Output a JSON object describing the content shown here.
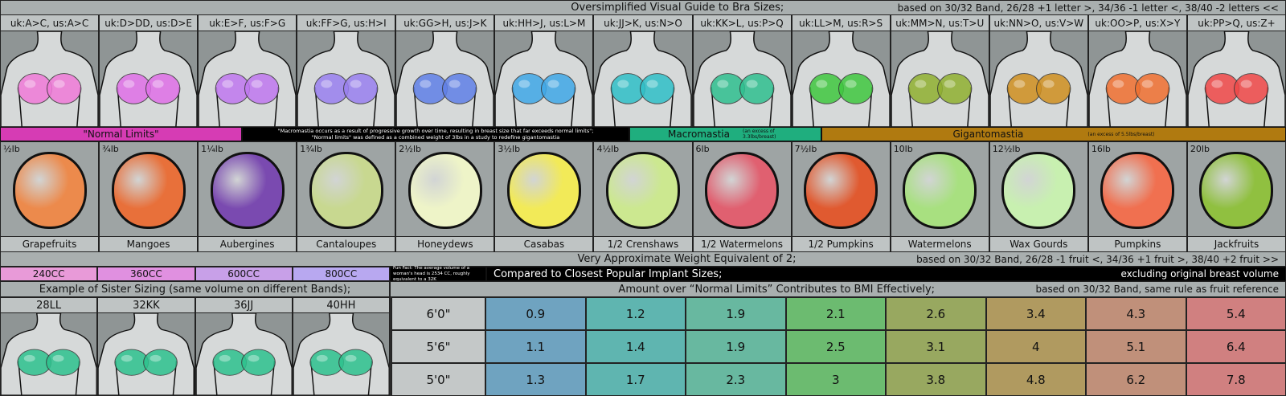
{
  "title": "Oversimplified Visual Guide to Bra Sizes;",
  "title_note": "based on 30/32 Band, 26/28 +1 letter >, 34/36 -1 letter <, 38/40 -2 letters <<",
  "sizes": [
    {
      "label": "uk:A>C, us:A>C",
      "color": "#f07ad8"
    },
    {
      "label": "uk:D>DD, us:D>E",
      "color": "#e070e8"
    },
    {
      "label": "uk:E>F, us:F>G",
      "color": "#c078f0"
    },
    {
      "label": "uk:FF>G, us:H>I",
      "color": "#9a80f0"
    },
    {
      "label": "uk:GG>H, us:J>K",
      "color": "#6080e8"
    },
    {
      "label": "uk:HH>J, us:L>M",
      "color": "#40a8e8"
    },
    {
      "label": "uk:JJ>K, us:N>O",
      "color": "#30c0c8"
    },
    {
      "label": "uk:KK>L, us:P>Q",
      "color": "#30c090"
    },
    {
      "label": "uk:LL>M, us:R>S",
      "color": "#40c840"
    },
    {
      "label": "uk:MM>N, us:T>U",
      "color": "#90b030"
    },
    {
      "label": "uk:NN>O, us:V>W",
      "color": "#d09020"
    },
    {
      "label": "uk:OO>P, us:X>Y",
      "color": "#f07030"
    },
    {
      "label": "uk:PP>Q, us:Z+",
      "color": "#f04848"
    }
  ],
  "bands": {
    "normal": "\"Normal Limits\"",
    "quote_line1": "\"Macromastia occurs as a result of progressive growth over time, resulting in breast size that far exceeds normal limits\";",
    "quote_line2": "\"Normal limits\" was defined as a combined weight of 3lbs in a study to redefine gigantomastia",
    "macro": "Macromastia",
    "macro_note": "(an excess of 3.3lbs/breast)",
    "giganto": "Gigantomastia",
    "giganto_note": "(an excess of 5.5lbs/breast)",
    "colors": {
      "normal": "#d63cb4",
      "macro": "#1fae7e",
      "giganto": "#b07a10"
    }
  },
  "fruits": [
    {
      "weight": "½lb",
      "name": "Grapefruits",
      "color": "#ec8a4c"
    },
    {
      "weight": "¾lb",
      "name": "Mangoes",
      "color": "#e8703a"
    },
    {
      "weight": "1¼lb",
      "name": "Aubergines",
      "color": "#7a4ab0"
    },
    {
      "weight": "1¾lb",
      "name": "Cantaloupes",
      "color": "#c8d890"
    },
    {
      "weight": "2½lb",
      "name": "Honeydews",
      "color": "#eef4c8"
    },
    {
      "weight": "3½lb",
      "name": "Casabas",
      "color": "#f2ea58"
    },
    {
      "weight": "4½lb",
      "name": "1/2 Crenshaws",
      "color": "#cce890"
    },
    {
      "weight": "6lb",
      "name": "1/2 Watermelons",
      "color": "#e06070"
    },
    {
      "weight": "7½lb",
      "name": "1/2 Pumpkins",
      "color": "#e05a30"
    },
    {
      "weight": "10lb",
      "name": "Watermelons",
      "color": "#a8e080"
    },
    {
      "weight": "12½lb",
      "name": "Wax Gourds",
      "color": "#c8f0b0"
    },
    {
      "weight": "16lb",
      "name": "Pumpkins",
      "color": "#f07050"
    },
    {
      "weight": "20lb",
      "name": "Jackfruits",
      "color": "#90c040"
    }
  ],
  "weight_heading": "Very Approximate Weight Equivalent of 2;",
  "weight_note": "based on 30/32 Band, 26/28 -1 fruit <, 34/36 +1 fruit >, 38/40 +2 fruit >>",
  "implants": [
    {
      "label": "240CC",
      "color": "#e89ad8"
    },
    {
      "label": "360CC",
      "color": "#e090e0"
    },
    {
      "label": "600CC",
      "color": "#c8a0e8"
    },
    {
      "label": "800CC",
      "color": "#b8a8f0"
    }
  ],
  "fun_fact": "Fun Fact: The average volume of a woman's head is 2534 CC, roughly equivalent to a 32K",
  "implant_heading": "Compared to Closest Popular Implant Sizes;",
  "implant_note": "excluding original breast volume",
  "sister_heading": "Example of Sister Sizing (same volume on different Bands);",
  "sister_sizes": [
    "28LL",
    "32KK",
    "36JJ",
    "40HH"
  ],
  "sister_color": "#2ec28e",
  "bmi_heading": "Amount over “Normal Limits” Contributes to BMI Effectively;",
  "bmi_note": "based on 30/32 Band, same rule as fruit reference",
  "bmi": {
    "column_colors": [
      "#6fa3c0",
      "#5fb5b0",
      "#68b8a0",
      "#6cbb70",
      "#98a860",
      "#b09a60",
      "#c0907a",
      "#d08080"
    ],
    "rows": [
      {
        "height": "6'0\"",
        "values": [
          "0.9",
          "1.2",
          "1.9",
          "2.1",
          "2.6",
          "3.4",
          "4.3",
          "5.4"
        ]
      },
      {
        "height": "5'6\"",
        "values": [
          "1.1",
          "1.4",
          "1.9",
          "2.5",
          "3.1",
          "4",
          "5.1",
          "6.4"
        ]
      },
      {
        "height": "5'0\"",
        "values": [
          "1.3",
          "1.7",
          "2.3",
          "3",
          "3.8",
          "4.8",
          "6.2",
          "7.8"
        ]
      }
    ]
  }
}
